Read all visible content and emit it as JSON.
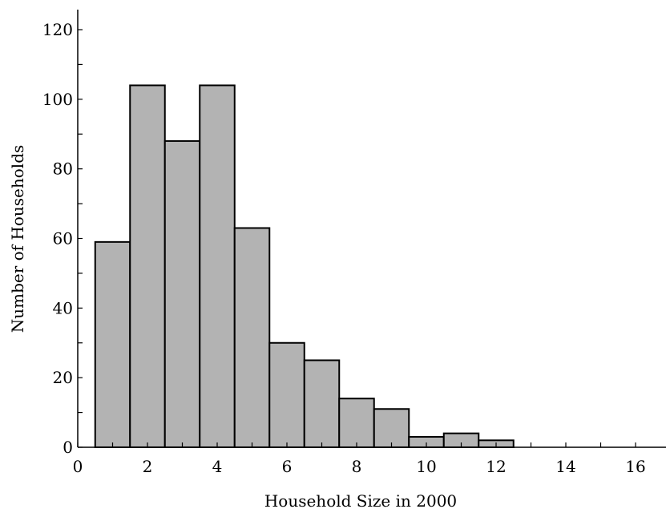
{
  "chart_data": {
    "type": "bar",
    "title": "",
    "xlabel": "Household Size in 2000",
    "ylabel": "Number of Households",
    "xlim": [
      0,
      17
    ],
    "ylim": [
      0,
      120
    ],
    "x_ticks": [
      0,
      2,
      4,
      6,
      8,
      10,
      12,
      14,
      16
    ],
    "y_ticks": [
      0,
      20,
      40,
      60,
      80,
      100,
      120
    ],
    "grid": false,
    "bar_color": "#b3b3b3",
    "edge_color": "#000000",
    "bins": [
      {
        "x0": 0.5,
        "x1": 1.5,
        "value": 59
      },
      {
        "x0": 1.5,
        "x1": 2.5,
        "value": 104
      },
      {
        "x0": 2.5,
        "x1": 3.5,
        "value": 88
      },
      {
        "x0": 3.5,
        "x1": 4.5,
        "value": 104
      },
      {
        "x0": 4.5,
        "x1": 5.5,
        "value": 63
      },
      {
        "x0": 5.5,
        "x1": 6.5,
        "value": 30
      },
      {
        "x0": 6.5,
        "x1": 7.5,
        "value": 25
      },
      {
        "x0": 7.5,
        "x1": 8.5,
        "value": 14
      },
      {
        "x0": 8.5,
        "x1": 9.5,
        "value": 11
      },
      {
        "x0": 9.5,
        "x1": 10.5,
        "value": 3
      },
      {
        "x0": 10.5,
        "x1": 11.5,
        "value": 4
      },
      {
        "x0": 11.5,
        "x1": 12.5,
        "value": 2
      }
    ]
  }
}
